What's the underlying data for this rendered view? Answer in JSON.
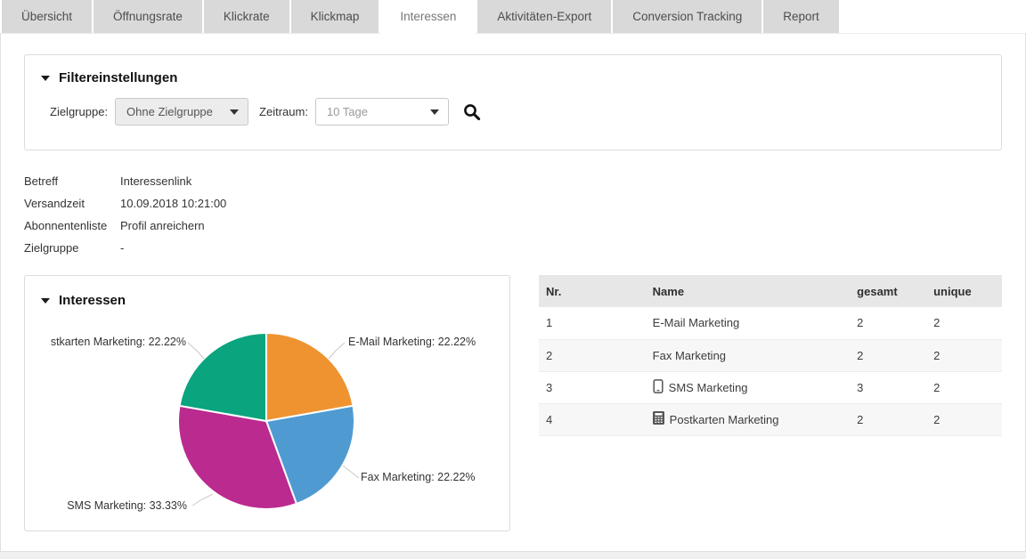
{
  "tabs": [
    {
      "label": "Übersicht",
      "active": false
    },
    {
      "label": "Öffnungsrate",
      "active": false
    },
    {
      "label": "Klickrate",
      "active": false
    },
    {
      "label": "Klickmap",
      "active": false
    },
    {
      "label": "Interessen",
      "active": true
    },
    {
      "label": "Aktivitäten-Export",
      "active": false
    },
    {
      "label": "Conversion Tracking",
      "active": false
    },
    {
      "label": "Report",
      "active": false
    }
  ],
  "filter": {
    "title": "Filtereinstellungen",
    "zielgruppe_label": "Zielgruppe:",
    "zielgruppe_value": "Ohne Zielgruppe",
    "zeitraum_label": "Zeitraum:",
    "zeitraum_value": "10 Tage",
    "search_icon": "magnifier-icon"
  },
  "meta": {
    "rows": [
      {
        "label": "Betreff",
        "value": "Interessenlink"
      },
      {
        "label": "Versandzeit",
        "value": "10.09.2018 10:21:00"
      },
      {
        "label": "Abonnentenliste",
        "value": "Profil anreichern"
      },
      {
        "label": "Zielgruppe",
        "value": "-"
      }
    ]
  },
  "chart_data": {
    "type": "pie",
    "title": "Interessen",
    "start_angle_deg": 0,
    "direction": "clockwise",
    "legend_position": "none",
    "slices": [
      {
        "name": "E-Mail Marketing",
        "percent": 22.22,
        "color": "#ef9230",
        "label": "E-Mail Marketing: 22.22%"
      },
      {
        "name": "Fax Marketing",
        "percent": 22.22,
        "color": "#4f9bd1",
        "label": "Fax Marketing: 22.22%"
      },
      {
        "name": "SMS Marketing",
        "percent": 33.33,
        "color": "#bb2a8e",
        "label": "SMS Marketing: 33.33%"
      },
      {
        "name": "Postkarten Marketing",
        "percent": 22.22,
        "color": "#0aa47e",
        "label": "stkarten Marketing: 22.22%"
      }
    ]
  },
  "table": {
    "headers": [
      "Nr.",
      "Name",
      "gesamt",
      "unique"
    ],
    "rows": [
      {
        "nr": "1",
        "name": "E-Mail Marketing",
        "gesamt": "2",
        "unique": "2",
        "icon": ""
      },
      {
        "nr": "2",
        "name": "Fax Marketing",
        "gesamt": "2",
        "unique": "2",
        "icon": ""
      },
      {
        "nr": "3",
        "name": "SMS Marketing",
        "gesamt": "3",
        "unique": "2",
        "icon": "smartphone-icon"
      },
      {
        "nr": "4",
        "name": "Postkarten Marketing",
        "gesamt": "2",
        "unique": "2",
        "icon": "calculator-icon"
      }
    ]
  }
}
